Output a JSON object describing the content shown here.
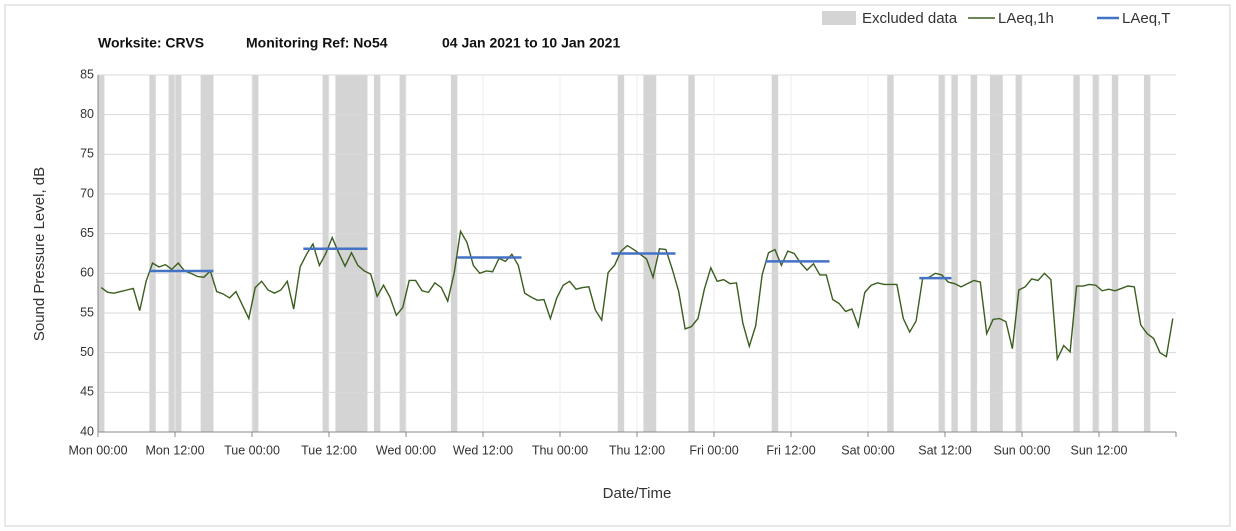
{
  "chart_data": {
    "type": "line",
    "title": [
      "Worksite: CRVS",
      "Monitoring Ref: No54",
      "04 Jan 2021 to 10 Jan 2021"
    ],
    "xlabel": "Date/Time",
    "ylabel": "Sound Pressure Level, dB",
    "xlim": [
      0,
      168
    ],
    "ylim": [
      40,
      85
    ],
    "yticks": [
      40,
      45,
      50,
      55,
      60,
      65,
      70,
      75,
      80,
      85
    ],
    "xticks": [
      {
        "value": 0,
        "label": "Mon 00:00"
      },
      {
        "value": 12,
        "label": "Mon 12:00"
      },
      {
        "value": 24,
        "label": "Tue 00:00"
      },
      {
        "value": 36,
        "label": "Tue 12:00"
      },
      {
        "value": 48,
        "label": "Wed 00:00"
      },
      {
        "value": 60,
        "label": "Wed 12:00"
      },
      {
        "value": 72,
        "label": "Thu 00:00"
      },
      {
        "value": 84,
        "label": "Thu 12:00"
      },
      {
        "value": 96,
        "label": "Fri 00:00"
      },
      {
        "value": 108,
        "label": "Fri 12:00"
      },
      {
        "value": 120,
        "label": "Sat 00:00"
      },
      {
        "value": 132,
        "label": "Sat 12:00"
      },
      {
        "value": 144,
        "label": "Sun 00:00"
      },
      {
        "value": 156,
        "label": "Sun 12:00"
      }
    ],
    "grid": true,
    "excluded": {
      "name": "Excluded data",
      "color": "#d4d4d4",
      "ranges": [
        [
          0,
          1
        ],
        [
          8,
          9
        ],
        [
          11,
          13
        ],
        [
          16,
          18
        ],
        [
          24,
          25
        ],
        [
          35,
          36
        ],
        [
          37,
          42
        ],
        [
          43,
          44
        ],
        [
          47,
          48
        ],
        [
          55,
          56
        ],
        [
          81,
          82
        ],
        [
          85,
          87
        ],
        [
          92,
          93
        ],
        [
          105,
          106
        ],
        [
          123,
          124
        ],
        [
          131,
          132
        ],
        [
          133,
          134
        ],
        [
          136,
          137
        ],
        [
          139,
          141
        ],
        [
          143,
          144
        ],
        [
          152,
          153
        ],
        [
          155,
          156
        ],
        [
          158,
          159
        ],
        [
          163,
          164
        ]
      ]
    },
    "x": [
      0.5,
      1.5,
      2.5,
      3.5,
      4.5,
      5.5,
      6.5,
      7.5,
      8.5,
      9.5,
      10.5,
      11.5,
      12.5,
      13.5,
      14.5,
      15.5,
      16.5,
      17.5,
      18.5,
      19.5,
      20.5,
      21.5,
      22.5,
      23.5,
      24.5,
      25.5,
      26.5,
      27.5,
      28.5,
      29.5,
      30.5,
      31.5,
      32.5,
      33.5,
      34.5,
      35.5,
      36.5,
      37.5,
      38.5,
      39.5,
      40.5,
      41.5,
      42.5,
      43.5,
      44.5,
      45.5,
      46.5,
      47.5,
      48.5,
      49.5,
      50.5,
      51.5,
      52.5,
      53.5,
      54.5,
      55.5,
      56.5,
      57.5,
      58.5,
      59.5,
      60.5,
      61.5,
      62.5,
      63.5,
      64.5,
      65.5,
      66.5,
      67.5,
      68.5,
      69.5,
      70.5,
      71.5,
      72.5,
      73.5,
      74.5,
      75.5,
      76.5,
      77.5,
      78.5,
      79.5,
      80.5,
      81.5,
      82.5,
      83.5,
      84.5,
      85.5,
      86.5,
      87.5,
      88.5,
      89.5,
      90.5,
      91.5,
      92.5,
      93.5,
      94.5,
      95.5,
      96.5,
      97.5,
      98.5,
      99.5,
      100.5,
      101.5,
      102.5,
      103.5,
      104.5,
      105.5,
      106.5,
      107.5,
      108.5,
      109.5,
      110.5,
      111.5,
      112.5,
      113.5,
      114.5,
      115.5,
      116.5,
      117.5,
      118.5,
      119.5,
      120.5,
      121.5,
      122.5,
      123.5,
      124.5,
      125.5,
      126.5,
      127.5,
      128.5,
      129.5,
      130.5,
      131.5,
      132.5,
      133.5,
      134.5,
      135.5,
      136.5,
      137.5,
      138.5,
      139.5,
      140.5,
      141.5,
      142.5,
      143.5,
      144.5,
      145.5,
      146.5,
      147.5,
      148.5,
      149.5,
      150.5,
      151.5,
      152.5,
      153.5,
      154.5,
      155.5,
      156.5,
      157.5,
      158.5,
      159.5,
      160.5,
      161.5,
      162.5,
      163.5,
      164.5,
      165.5,
      166.5,
      167.5
    ],
    "series": [
      {
        "name": "LAeq,1h",
        "color": "#3b5e1e",
        "values": [
          58.2,
          57.6,
          57.5,
          57.7,
          57.9,
          58.1,
          55.3,
          59,
          61.3,
          60.8,
          61.1,
          60.5,
          61.3,
          60.3,
          60,
          59.6,
          59.5,
          60.3,
          57.7,
          57.4,
          56.9,
          57.7,
          56,
          54.3,
          58.2,
          59,
          57.9,
          57.5,
          57.9,
          59,
          55.5,
          60.8,
          62.4,
          63.7,
          61,
          62.5,
          64.5,
          62.6,
          60.9,
          62.6,
          61,
          60.3,
          59.9,
          57.1,
          58.5,
          57,
          54.7,
          55.7,
          59.1,
          59.1,
          57.8,
          57.6,
          58.8,
          58.2,
          56.5,
          60,
          65.3,
          63.9,
          61,
          60,
          60.3,
          60.2,
          61.9,
          61.5,
          62.4,
          61,
          57.5,
          57,
          56.6,
          56.7,
          54.3,
          56.9,
          58.5,
          59,
          58,
          58.2,
          58.3,
          55.4,
          54.1,
          60.1,
          61,
          62.8,
          63.5,
          63,
          62.4,
          61.8,
          59.5,
          63.1,
          63,
          60.5,
          57.7,
          53,
          53.3,
          54.3,
          58,
          60.7,
          59,
          59.2,
          58.7,
          58.8,
          53.7,
          50.8,
          53.4,
          59.8,
          62.6,
          63,
          61,
          62.8,
          62.5,
          61.3,
          60.4,
          61.2,
          59.8,
          59.8,
          56.7,
          56.2,
          55.2,
          55.5,
          53.3,
          57.6,
          58.5,
          58.8,
          58.6,
          58.6,
          58.6,
          54.3,
          52.6,
          54,
          59.3,
          59.5,
          60,
          59.8,
          58.9,
          58.7,
          58.3,
          58.7,
          59.1,
          58.9,
          52.4,
          54.2,
          54.3,
          53.9,
          50.5,
          57.9,
          58.3,
          59.3,
          59.1,
          60,
          59.2,
          49.2,
          50.9,
          50.1,
          58.4,
          58.4,
          58.6,
          58.5,
          57.8,
          58,
          57.8,
          58.1,
          58.4,
          58.3,
          53.5,
          52.4,
          51.8,
          50,
          49.5,
          54.3
        ]
      },
      {
        "name": "LAeq,T",
        "color": "#4472c4",
        "segments": [
          {
            "x": [
              8,
              18
            ],
            "value": 60.3
          },
          {
            "x": [
              32,
              42
            ],
            "value": 63.1
          },
          {
            "x": [
              56,
              66
            ],
            "value": 62
          },
          {
            "x": [
              80,
              90
            ],
            "value": 62.5
          },
          {
            "x": [
              104,
              114
            ],
            "value": 61.5
          },
          {
            "x": [
              128,
              133
            ],
            "value": 59.4
          }
        ]
      }
    ]
  }
}
